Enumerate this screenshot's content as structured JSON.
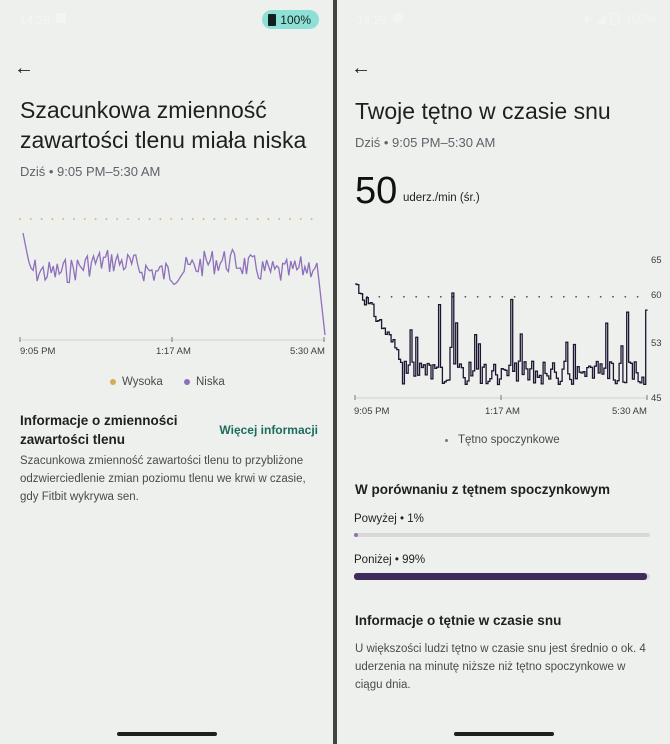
{
  "left": {
    "status": {
      "time": "14:28",
      "battery": "100%"
    },
    "title": "Szacunkowa zmienność zawartości tlenu miała niska",
    "subtitle": "Dziś • 9:05 PM–5:30 AM",
    "x_labels": [
      "9:05 PM",
      "1:17 AM",
      "5:30 AM"
    ],
    "legend": [
      {
        "label": "Wysoka",
        "color": "#d8a85b"
      },
      {
        "label": "Niska",
        "color": "#8e6fbc"
      }
    ],
    "info": {
      "title": "Informacje o zmienności zawartości tlenu",
      "link": "Więcej informacji",
      "body": "Szacunkowa zmienność zawartości tlenu to przybliżone odzwierciedlenie zmian poziomu tlenu we krwi w czasie, gdy Fitbit wykrywa sen."
    }
  },
  "right": {
    "status": {
      "time": "14:29",
      "battery": "100%"
    },
    "title": "Twoje tętno w czasie snu",
    "subtitle": "Dziś • 9:05 PM–5:30 AM",
    "value": "50",
    "unit": "uderz./min (śr.)",
    "x_labels": [
      "9:05 PM",
      "1:17 AM",
      "5:30 AM"
    ],
    "y_labels": [
      "65",
      "60",
      "53",
      "45"
    ],
    "legend": "Tętno spoczynkowe",
    "comparison": {
      "title": "W porównaniu z tętnem spoczynkowym",
      "above_label": "Powyżej • 1%",
      "above_value": 1,
      "below_label": "Poniżej • 99%",
      "below_value": 99
    },
    "info": {
      "title": "Informacje o tętnie w czasie snu",
      "body": "U większości ludzi tętno w czasie snu jest średnio o ok. 4 uderzenia na minutę niższe niż tętno spoczynkowe w ciągu dnia."
    }
  },
  "chart_data": [
    {
      "type": "line",
      "series": [
        {
          "name": "Niska",
          "color": "#8e6fbc"
        }
      ],
      "xlabel": "",
      "ylabel": ""
    },
    {
      "type": "line",
      "series": [
        {
          "name": "Tętno spoczynkowe",
          "color": "#1c1530"
        }
      ],
      "ylim": [
        45,
        65
      ],
      "resting_rate": 60,
      "y_ticks": [
        65,
        60,
        53,
        45
      ]
    }
  ]
}
